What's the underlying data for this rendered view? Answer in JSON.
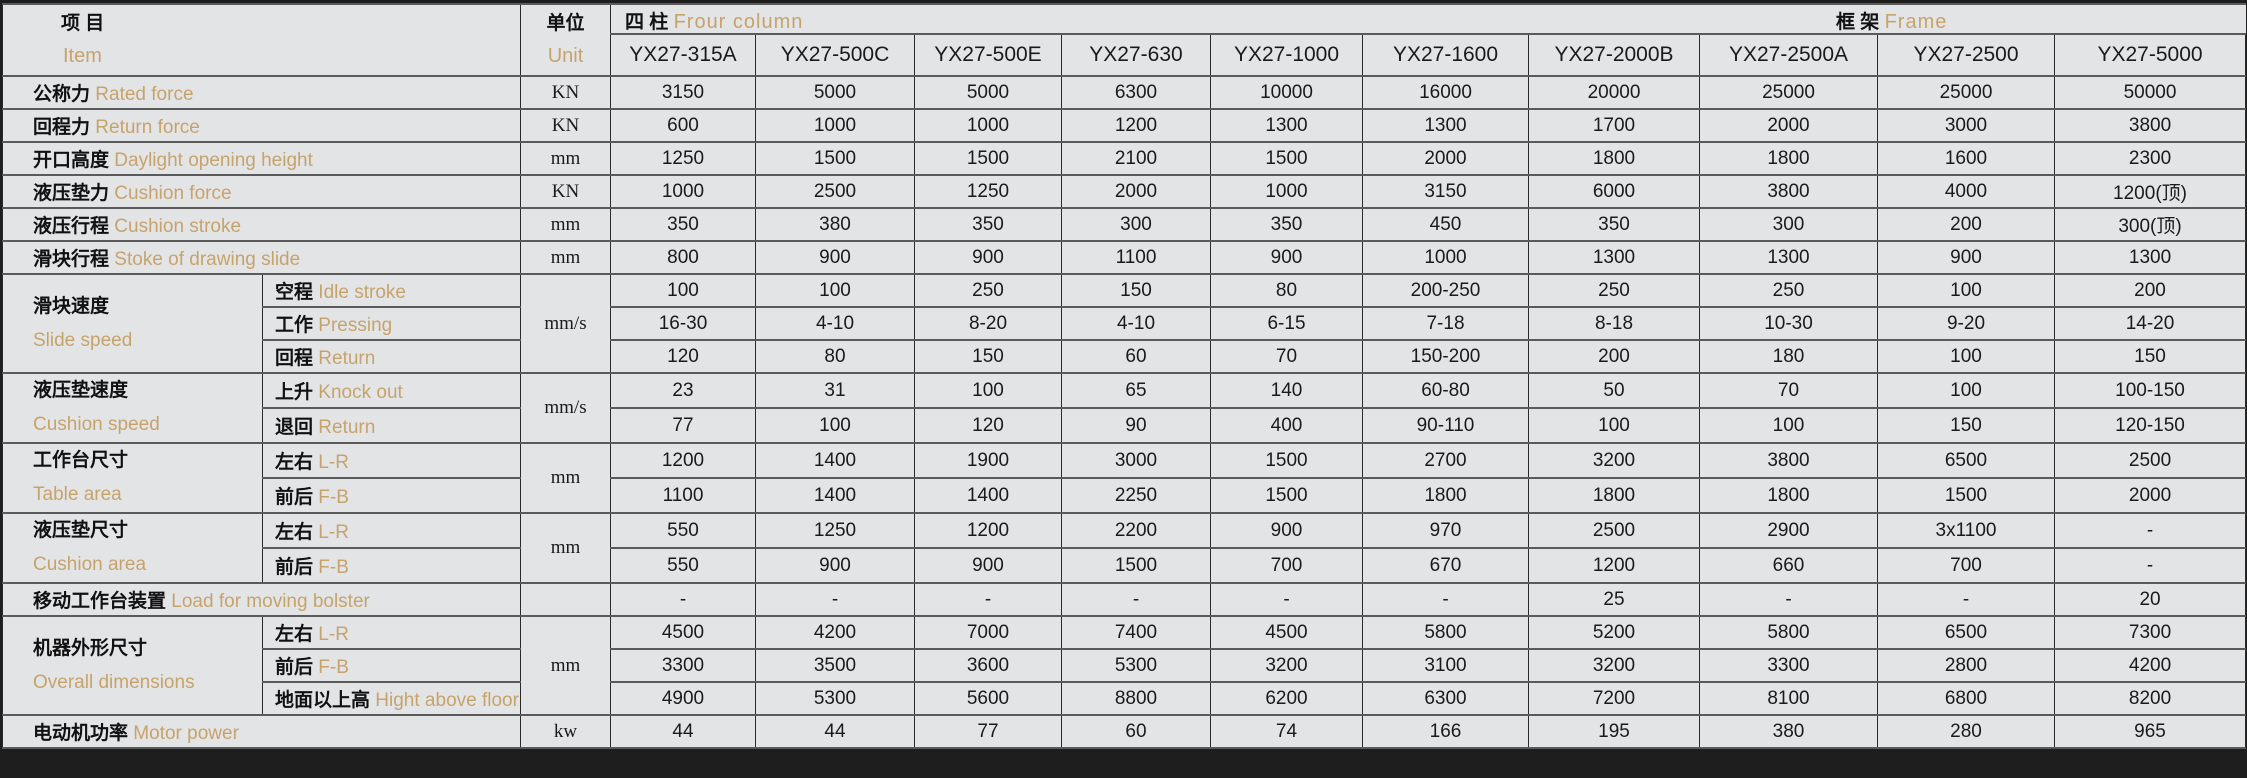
{
  "header": {
    "item_zh": "项 目",
    "item_en": "Item",
    "unit_zh": "单位",
    "unit_en": "Unit",
    "four_column_zh": "四 柱",
    "four_column_en": "Frour column",
    "frame_zh": "框 架",
    "frame_en": "Frame"
  },
  "colors": {
    "label_en": "#c7a36c",
    "label_zh": "#111111",
    "background": "#e3e4e6",
    "frame": "#1e1e1e"
  },
  "models": [
    "YX27-315A",
    "YX27-500C",
    "YX27-500E",
    "YX27-630",
    "YX27-1000",
    "YX27-1600",
    "YX27-2000B",
    "YX27-2500A",
    "YX27-2500",
    "YX27-5000"
  ],
  "rows": [
    {
      "zh": "公称力",
      "en": "Rated force",
      "unit": "KN",
      "values": [
        "3150",
        "5000",
        "5000",
        "6300",
        "10000",
        "16000",
        "20000",
        "25000",
        "25000",
        "50000"
      ]
    },
    {
      "zh": "回程力",
      "en": "Return force",
      "unit": "KN",
      "values": [
        "600",
        "1000",
        "1000",
        "1200",
        "1300",
        "1300",
        "1700",
        "2000",
        "3000",
        "3800"
      ]
    },
    {
      "zh": "开口高度",
      "en": "Daylight opening height",
      "unit": "mm",
      "values": [
        "1250",
        "1500",
        "1500",
        "2100",
        "1500",
        "2000",
        "1800",
        "1800",
        "1600",
        "2300"
      ]
    },
    {
      "zh": "液压垫力",
      "en": "Cushion force",
      "unit": "KN",
      "values": [
        "1000",
        "2500",
        "1250",
        "2000",
        "1000",
        "3150",
        "6000",
        "3800",
        "4000",
        "1200(顶)"
      ]
    },
    {
      "zh": "液压行程",
      "en": "Cushion stroke",
      "unit": "mm",
      "values": [
        "350",
        "380",
        "350",
        "300",
        "350",
        "450",
        "350",
        "300",
        "200",
        "300(顶)"
      ]
    },
    {
      "zh": "滑块行程",
      "en": "Stoke of drawing slide",
      "unit": "mm",
      "values": [
        "800",
        "900",
        "900",
        "1100",
        "900",
        "1000",
        "1300",
        "1300",
        "900",
        "1300"
      ]
    },
    {
      "zh": "滑块速度",
      "en": "Slide speed",
      "unit": "mm/s",
      "sub": [
        {
          "zh": "空程",
          "en": "Idle stroke",
          "values": [
            "100",
            "100",
            "250",
            "150",
            "80",
            "200-250",
            "250",
            "250",
            "100",
            "200"
          ]
        },
        {
          "zh": "工作",
          "en": "Pressing",
          "values": [
            "16-30",
            "4-10",
            "8-20",
            "4-10",
            "6-15",
            "7-18",
            "8-18",
            "10-30",
            "9-20",
            "14-20"
          ]
        },
        {
          "zh": "回程",
          "en": "Return",
          "values": [
            "120",
            "80",
            "150",
            "60",
            "70",
            "150-200",
            "200",
            "180",
            "100",
            "150"
          ]
        }
      ]
    },
    {
      "zh": "液压垫速度",
      "en": "Cushion speed",
      "unit": "mm/s",
      "sub": [
        {
          "zh": "上升",
          "en": "Knock out",
          "values": [
            "23",
            "31",
            "100",
            "65",
            "140",
            "60-80",
            "50",
            "70",
            "100",
            "100-150"
          ]
        },
        {
          "zh": "退回",
          "en": "Return",
          "values": [
            "77",
            "100",
            "120",
            "90",
            "400",
            "90-110",
            "100",
            "100",
            "150",
            "120-150"
          ]
        }
      ]
    },
    {
      "zh": "工作台尺寸",
      "en": "Table area",
      "unit": "mm",
      "sub": [
        {
          "zh": "左右",
          "en": "L-R",
          "values": [
            "1200",
            "1400",
            "1900",
            "3000",
            "1500",
            "2700",
            "3200",
            "3800",
            "6500",
            "2500"
          ]
        },
        {
          "zh": "前后",
          "en": "F-B",
          "values": [
            "1100",
            "1400",
            "1400",
            "2250",
            "1500",
            "1800",
            "1800",
            "1800",
            "1500",
            "2000"
          ]
        }
      ]
    },
    {
      "zh": "液压垫尺寸",
      "en": "Cushion area",
      "unit": "mm",
      "sub": [
        {
          "zh": "左右",
          "en": "L-R",
          "values": [
            "550",
            "1250",
            "1200",
            "2200",
            "900",
            "970",
            "2500",
            "2900",
            "3x1100",
            "-"
          ]
        },
        {
          "zh": "前后",
          "en": "F-B",
          "values": [
            "550",
            "900",
            "900",
            "1500",
            "700",
            "670",
            "1200",
            "660",
            "700",
            "-"
          ]
        }
      ]
    },
    {
      "zh": "移动工作台装置",
      "en": "Load for moving bolster",
      "unit": "",
      "values": [
        "-",
        "-",
        "-",
        "-",
        "-",
        "-",
        "25",
        "-",
        "-",
        "20"
      ]
    },
    {
      "zh": "机器外形尺寸",
      "en": "Overall dimensions",
      "unit": "mm",
      "sub": [
        {
          "zh": "左右",
          "en": "L-R",
          "values": [
            "4500",
            "4200",
            "7000",
            "7400",
            "4500",
            "5800",
            "5200",
            "5800",
            "6500",
            "7300"
          ]
        },
        {
          "zh": "前后",
          "en": "F-B",
          "values": [
            "3300",
            "3500",
            "3600",
            "5300",
            "3200",
            "3100",
            "3200",
            "3300",
            "2800",
            "4200"
          ]
        },
        {
          "zh": "地面以上高",
          "en": "Hight above floor",
          "values": [
            "4900",
            "5300",
            "5600",
            "8800",
            "6200",
            "6300",
            "7200",
            "8100",
            "6800",
            "8200"
          ]
        }
      ]
    },
    {
      "zh": "电动机功率",
      "en": "Motor power",
      "unit": "kw",
      "values": [
        "44",
        "44",
        "77",
        "60",
        "74",
        "166",
        "195",
        "380",
        "280",
        "965"
      ]
    }
  ]
}
